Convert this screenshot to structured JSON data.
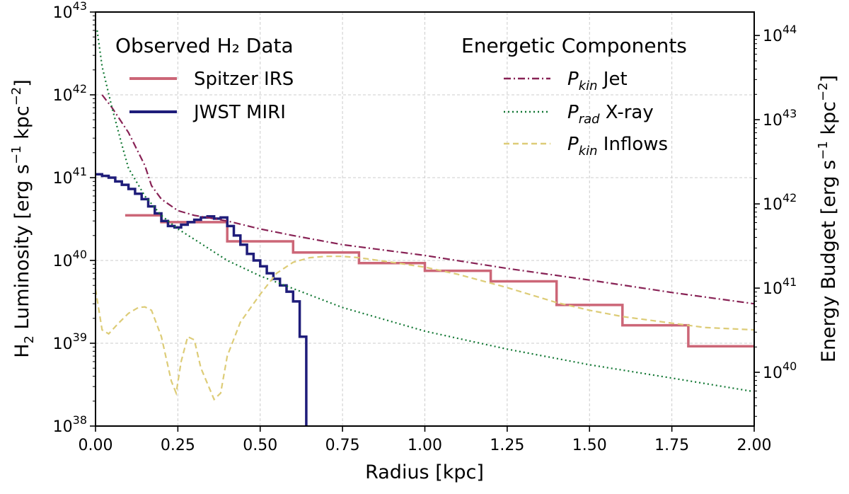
{
  "chart_data": {
    "type": "line",
    "xlabel": "Radius [kpc]",
    "ylabel_left": "H2 Luminosity [erg s^-1 kpc^-2]",
    "ylabel_right": "Energy Budget [erg s^-1 kpc^-2]",
    "ylabel_left_parts": {
      "main": "H",
      "sub": "2",
      "rest": " Luminosity [erg s",
      "sup1": "−1",
      "mid": " kpc",
      "sup2": "−2",
      "end": "]"
    },
    "ylabel_right_parts": {
      "main": "Energy Budget [erg s",
      "sup1": "−1",
      "mid": " kpc",
      "sup2": "−2",
      "end": "]"
    },
    "xlim": [
      0,
      2.0
    ],
    "ylim_left": [
      1e+38,
      1e+43
    ],
    "ylim_right": [
      2.3e+39,
      1.9e+44
    ],
    "x_ticks": [
      "0.00",
      "0.25",
      "0.50",
      "0.75",
      "1.00",
      "1.25",
      "1.50",
      "1.75",
      "2.00"
    ],
    "y_left_ticks": [
      {
        "base": "10",
        "exp": "38"
      },
      {
        "base": "10",
        "exp": "39"
      },
      {
        "base": "10",
        "exp": "40"
      },
      {
        "base": "10",
        "exp": "41"
      },
      {
        "base": "10",
        "exp": "42"
      },
      {
        "base": "10",
        "exp": "43"
      }
    ],
    "y_right_ticks": [
      {
        "base": "10",
        "exp": "40"
      },
      {
        "base": "10",
        "exp": "41"
      },
      {
        "base": "10",
        "exp": "42"
      },
      {
        "base": "10",
        "exp": "43"
      },
      {
        "base": "10",
        "exp": "44"
      }
    ],
    "legend_left_title": "Observed H₂ Data",
    "legend_right_title": "Energetic Components",
    "series": [
      {
        "name": "Spitzer IRS",
        "axis": "left",
        "style": "step",
        "color": "#cc6677",
        "points": [
          [
            0.09,
            3.5e+40
          ],
          [
            0.2,
            3.5e+40
          ],
          [
            0.2,
            2.9e+40
          ],
          [
            0.4,
            2.9e+40
          ],
          [
            0.4,
            1.7e+40
          ],
          [
            0.6,
            1.7e+40
          ],
          [
            0.6,
            1.25e+40
          ],
          [
            0.8,
            1.25e+40
          ],
          [
            0.8,
            9.3e+39
          ],
          [
            1.0,
            9.3e+39
          ],
          [
            1.0,
            7.5e+39
          ],
          [
            1.2,
            7.5e+39
          ],
          [
            1.2,
            5.6e+39
          ],
          [
            1.4,
            5.6e+39
          ],
          [
            1.4,
            2.9e+39
          ],
          [
            1.6,
            2.9e+39
          ],
          [
            1.6,
            1.65e+39
          ],
          [
            1.8,
            1.65e+39
          ],
          [
            1.8,
            9.2e+38
          ],
          [
            2.0,
            9.2e+38
          ]
        ]
      },
      {
        "name": "JWST MIRI",
        "axis": "left",
        "style": "solid",
        "color": "#1f1d7a",
        "points": [
          [
            0.0,
            1.1e+41
          ],
          [
            0.02,
            1.1e+41
          ],
          [
            0.02,
            1.05e+41
          ],
          [
            0.04,
            1.05e+41
          ],
          [
            0.04,
            1e+41
          ],
          [
            0.06,
            1e+41
          ],
          [
            0.06,
            9e+40
          ],
          [
            0.08,
            9e+40
          ],
          [
            0.08,
            8.2e+40
          ],
          [
            0.1,
            8.2e+40
          ],
          [
            0.1,
            7.3e+40
          ],
          [
            0.12,
            7.3e+40
          ],
          [
            0.12,
            6.4e+40
          ],
          [
            0.14,
            6.4e+40
          ],
          [
            0.14,
            5.5e+40
          ],
          [
            0.16,
            5.5e+40
          ],
          [
            0.16,
            4.5e+40
          ],
          [
            0.18,
            4.5e+40
          ],
          [
            0.18,
            3.7e+40
          ],
          [
            0.2,
            3.7e+40
          ],
          [
            0.2,
            3e+40
          ],
          [
            0.22,
            3e+40
          ],
          [
            0.22,
            2.6e+40
          ],
          [
            0.24,
            2.6e+40
          ],
          [
            0.24,
            2.5e+40
          ],
          [
            0.26,
            2.5e+40
          ],
          [
            0.26,
            2.7e+40
          ],
          [
            0.28,
            2.7e+40
          ],
          [
            0.28,
            2.9e+40
          ],
          [
            0.3,
            2.9e+40
          ],
          [
            0.3,
            3.1e+40
          ],
          [
            0.32,
            3.1e+40
          ],
          [
            0.32,
            3.3e+40
          ],
          [
            0.34,
            3.3e+40
          ],
          [
            0.34,
            3.4e+40
          ],
          [
            0.36,
            3.4e+40
          ],
          [
            0.36,
            3.2e+40
          ],
          [
            0.38,
            3.2e+40
          ],
          [
            0.38,
            3.3e+40
          ],
          [
            0.4,
            3.3e+40
          ],
          [
            0.4,
            2.6e+40
          ],
          [
            0.42,
            2.6e+40
          ],
          [
            0.42,
            2e+40
          ],
          [
            0.44,
            2e+40
          ],
          [
            0.44,
            1.55e+40
          ],
          [
            0.46,
            1.55e+40
          ],
          [
            0.46,
            1.2e+40
          ],
          [
            0.48,
            1.2e+40
          ],
          [
            0.48,
            1e+40
          ],
          [
            0.5,
            1e+40
          ],
          [
            0.5,
            8.5e+39
          ],
          [
            0.52,
            8.5e+39
          ],
          [
            0.52,
            7e+39
          ],
          [
            0.54,
            7e+39
          ],
          [
            0.54,
            6e+39
          ],
          [
            0.56,
            6e+39
          ],
          [
            0.56,
            5e+39
          ],
          [
            0.58,
            5e+39
          ],
          [
            0.58,
            4.2e+39
          ],
          [
            0.6,
            4.2e+39
          ],
          [
            0.6,
            3.2e+39
          ],
          [
            0.62,
            3.2e+39
          ],
          [
            0.62,
            1.2e+39
          ],
          [
            0.64,
            1.2e+39
          ],
          [
            0.64,
            1e+38
          ]
        ]
      },
      {
        "name": "Jet",
        "label_italic": "P",
        "label_sub": "kin",
        "label_rest": " Jet",
        "axis": "left",
        "style": "dashdot",
        "color": "#882255",
        "points": [
          [
            0.02,
            1e+42
          ],
          [
            0.05,
            7e+41
          ],
          [
            0.1,
            3.5e+41
          ],
          [
            0.15,
            1.4e+41
          ],
          [
            0.17,
            8e+40
          ],
          [
            0.2,
            5.5e+40
          ],
          [
            0.25,
            4e+40
          ],
          [
            0.3,
            3.5e+40
          ],
          [
            0.4,
            3e+40
          ],
          [
            0.5,
            2.4e+40
          ],
          [
            0.6,
            2e+40
          ],
          [
            0.75,
            1.55e+40
          ],
          [
            1.0,
            1.15e+40
          ],
          [
            1.25,
            8e+39
          ],
          [
            1.5,
            5.8e+39
          ],
          [
            1.75,
            4.1e+39
          ],
          [
            2.0,
            3e+39
          ]
        ]
      },
      {
        "name": "X-ray",
        "label_italic": "P",
        "label_sub": "rad",
        "label_rest": " X-ray",
        "axis": "left",
        "style": "dotted",
        "color": "#117733",
        "points": [
          [
            0.005,
            6e+42
          ],
          [
            0.02,
            2.2e+42
          ],
          [
            0.05,
            7e+41
          ],
          [
            0.08,
            2.5e+41
          ],
          [
            0.1,
            1.3e+41
          ],
          [
            0.15,
            6e+40
          ],
          [
            0.2,
            3.5e+40
          ],
          [
            0.25,
            2.4e+40
          ],
          [
            0.3,
            1.8e+40
          ],
          [
            0.4,
            1e+40
          ],
          [
            0.5,
            6.5e+39
          ],
          [
            0.75,
            2.7e+39
          ],
          [
            1.0,
            1.4e+39
          ],
          [
            1.25,
            8.5e+38
          ],
          [
            1.5,
            5.5e+38
          ],
          [
            1.75,
            3.8e+38
          ],
          [
            2.0,
            2.6e+38
          ]
        ]
      },
      {
        "name": "Inflows",
        "label_italic": "P",
        "label_sub": "kin",
        "label_rest": " Inflows",
        "axis": "left",
        "style": "dashed",
        "color": "#ddcc77",
        "points": [
          [
            0.0,
            4.5e+39
          ],
          [
            0.02,
            1.45e+39
          ],
          [
            0.04,
            1.3e+39
          ],
          [
            0.07,
            1.75e+39
          ],
          [
            0.1,
            2.3e+39
          ],
          [
            0.13,
            2.7e+39
          ],
          [
            0.15,
            2.75e+39
          ],
          [
            0.17,
            2.5e+39
          ],
          [
            0.2,
            1.2e+39
          ],
          [
            0.23,
            3.5e+38
          ],
          [
            0.245,
            2.5e+38
          ],
          [
            0.26,
            6e+38
          ],
          [
            0.28,
            1.2e+39
          ],
          [
            0.3,
            1.1e+39
          ],
          [
            0.32,
            5e+38
          ],
          [
            0.36,
            2.1e+38
          ],
          [
            0.38,
            2.5e+38
          ],
          [
            0.4,
            7e+38
          ],
          [
            0.44,
            1.8e+39
          ],
          [
            0.5,
            3.9e+39
          ],
          [
            0.55,
            7e+39
          ],
          [
            0.6,
            9.5e+39
          ],
          [
            0.65,
            1.08e+40
          ],
          [
            0.7,
            1.12e+40
          ],
          [
            0.75,
            1.12e+40
          ],
          [
            0.8,
            1.08e+40
          ],
          [
            0.9,
            9.5e+39
          ],
          [
            1.0,
            8.3e+39
          ],
          [
            1.1,
            6.8e+39
          ],
          [
            1.25,
            4.7e+39
          ],
          [
            1.4,
            3.1e+39
          ],
          [
            1.5,
            2.5e+39
          ],
          [
            1.6,
            2.1e+39
          ],
          [
            1.75,
            1.75e+39
          ],
          [
            1.85,
            1.55e+39
          ],
          [
            2.0,
            1.45e+39
          ]
        ]
      }
    ]
  }
}
